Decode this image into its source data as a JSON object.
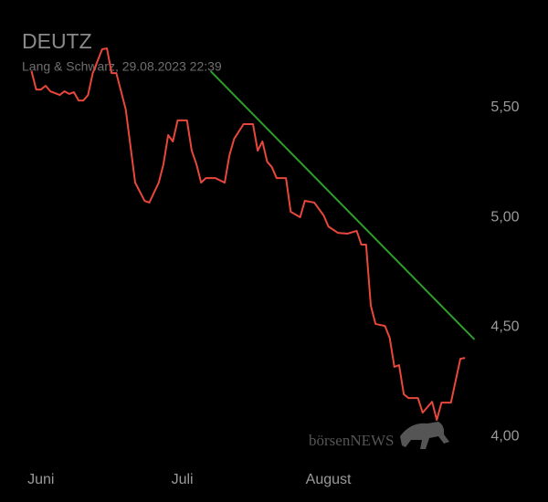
{
  "chart_data": {
    "type": "line",
    "title": "DEUTZ",
    "subtitle": "Lang & Schwarz, 29.08.2023 22:39",
    "watermark": "börsenNEWS",
    "series": [
      {
        "name": "DEUTZ",
        "color": "#e8473b",
        "x": [
          -2,
          -1,
          0,
          1,
          2,
          4,
          5,
          6,
          7,
          8,
          9,
          10,
          11,
          13,
          14,
          15,
          16,
          18,
          19,
          20,
          22,
          23,
          25,
          26,
          27,
          28,
          29,
          31,
          32,
          33,
          34,
          35,
          37,
          39,
          40,
          41,
          43,
          45,
          46,
          47,
          48,
          49,
          50,
          52,
          53,
          55,
          56,
          58,
          60,
          61,
          63,
          65,
          67,
          68,
          69,
          70,
          71,
          73,
          74,
          75,
          76,
          77,
          78,
          80,
          81,
          82,
          83,
          84,
          85,
          87,
          89,
          90
        ],
        "values": [
          5.667,
          5.583,
          5.583,
          5.6,
          5.575,
          5.558,
          5.575,
          5.563,
          5.571,
          5.533,
          5.533,
          5.558,
          5.658,
          5.767,
          5.771,
          5.658,
          5.658,
          5.492,
          5.325,
          5.158,
          5.075,
          5.067,
          5.158,
          5.242,
          5.375,
          5.346,
          5.442,
          5.442,
          5.304,
          5.242,
          5.158,
          5.179,
          5.179,
          5.158,
          5.283,
          5.358,
          5.425,
          5.425,
          5.304,
          5.346,
          5.254,
          5.229,
          5.179,
          5.179,
          5.025,
          5.0,
          5.075,
          5.067,
          5.008,
          4.958,
          4.929,
          4.925,
          4.938,
          4.875,
          4.875,
          4.596,
          4.513,
          4.504,
          4.45,
          4.317,
          4.325,
          4.192,
          4.175,
          4.175,
          4.108,
          4.133,
          4.158,
          4.075,
          4.154,
          4.154,
          4.354,
          4.358
        ]
      },
      {
        "name": "Trend",
        "color": "#2e9e2a",
        "x": [
          36,
          92
        ],
        "values": [
          5.667,
          4.442
        ]
      }
    ],
    "xlim": [
      -5,
      95
    ],
    "xticks": [
      {
        "value": 0,
        "label": "Juni"
      },
      {
        "value": 30,
        "label": "Juli"
      },
      {
        "value": 61,
        "label": "August"
      }
    ],
    "ylim": [
      3.867,
      5.825
    ],
    "yticks": [
      {
        "value": 5.5,
        "label": "5,50"
      },
      {
        "value": 5.0,
        "label": "5,00"
      },
      {
        "value": 4.5,
        "label": "4,50"
      },
      {
        "value": 4.0,
        "label": "4,00"
      }
    ],
    "grid": false
  }
}
